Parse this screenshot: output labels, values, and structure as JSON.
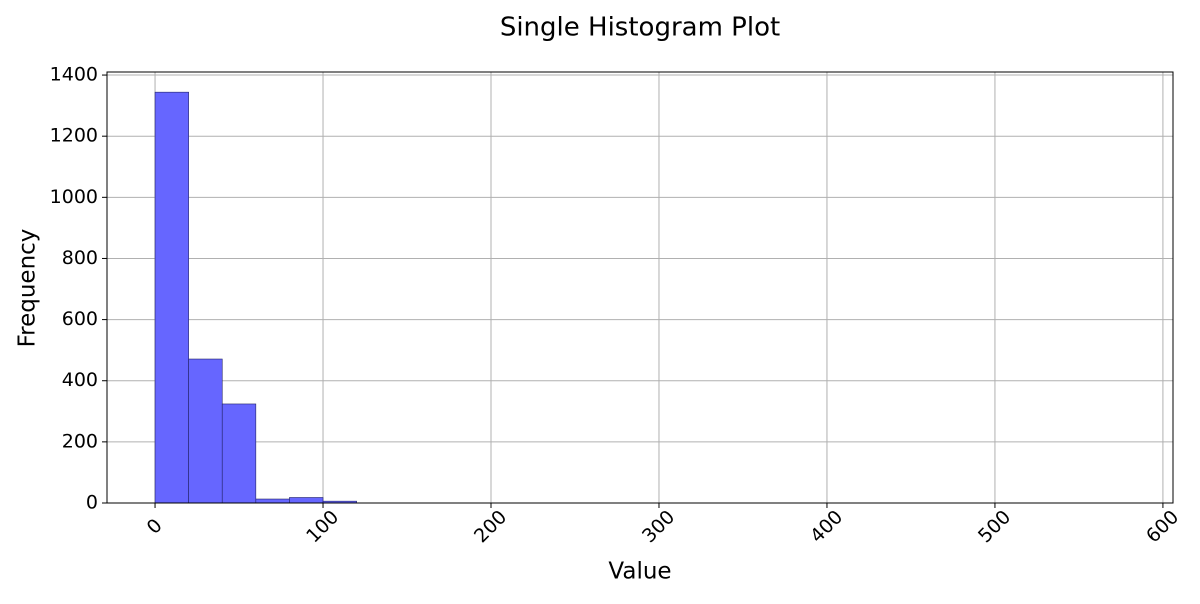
{
  "chart_data": {
    "type": "histogram",
    "title": "Single Histogram Plot",
    "x_label": "Value",
    "y_label": "Frequency",
    "bins": [
      0,
      20,
      40,
      60,
      80,
      100,
      120,
      140,
      160,
      180,
      200,
      220,
      240,
      260,
      280,
      300,
      320,
      340,
      360,
      380,
      400,
      420,
      440,
      460,
      480,
      500,
      520,
      540,
      560,
      580
    ],
    "values": [
      1344,
      471,
      324,
      13,
      18,
      6,
      0,
      0,
      0,
      0,
      0,
      0,
      0,
      0,
      0,
      0,
      0,
      0,
      0,
      0,
      0,
      0,
      0,
      0,
      0,
      0,
      0,
      0,
      0
    ],
    "color": "#6666ff",
    "edgecolor": "#222266",
    "xlim": [
      -28.6,
      606
    ],
    "xticks": [
      0,
      100,
      200,
      300,
      400,
      500,
      600
    ],
    "ylim": [
      0,
      1410
    ],
    "yticks": [
      0,
      200,
      400,
      600,
      800,
      1000,
      1200,
      1400
    ],
    "grid": true
  }
}
